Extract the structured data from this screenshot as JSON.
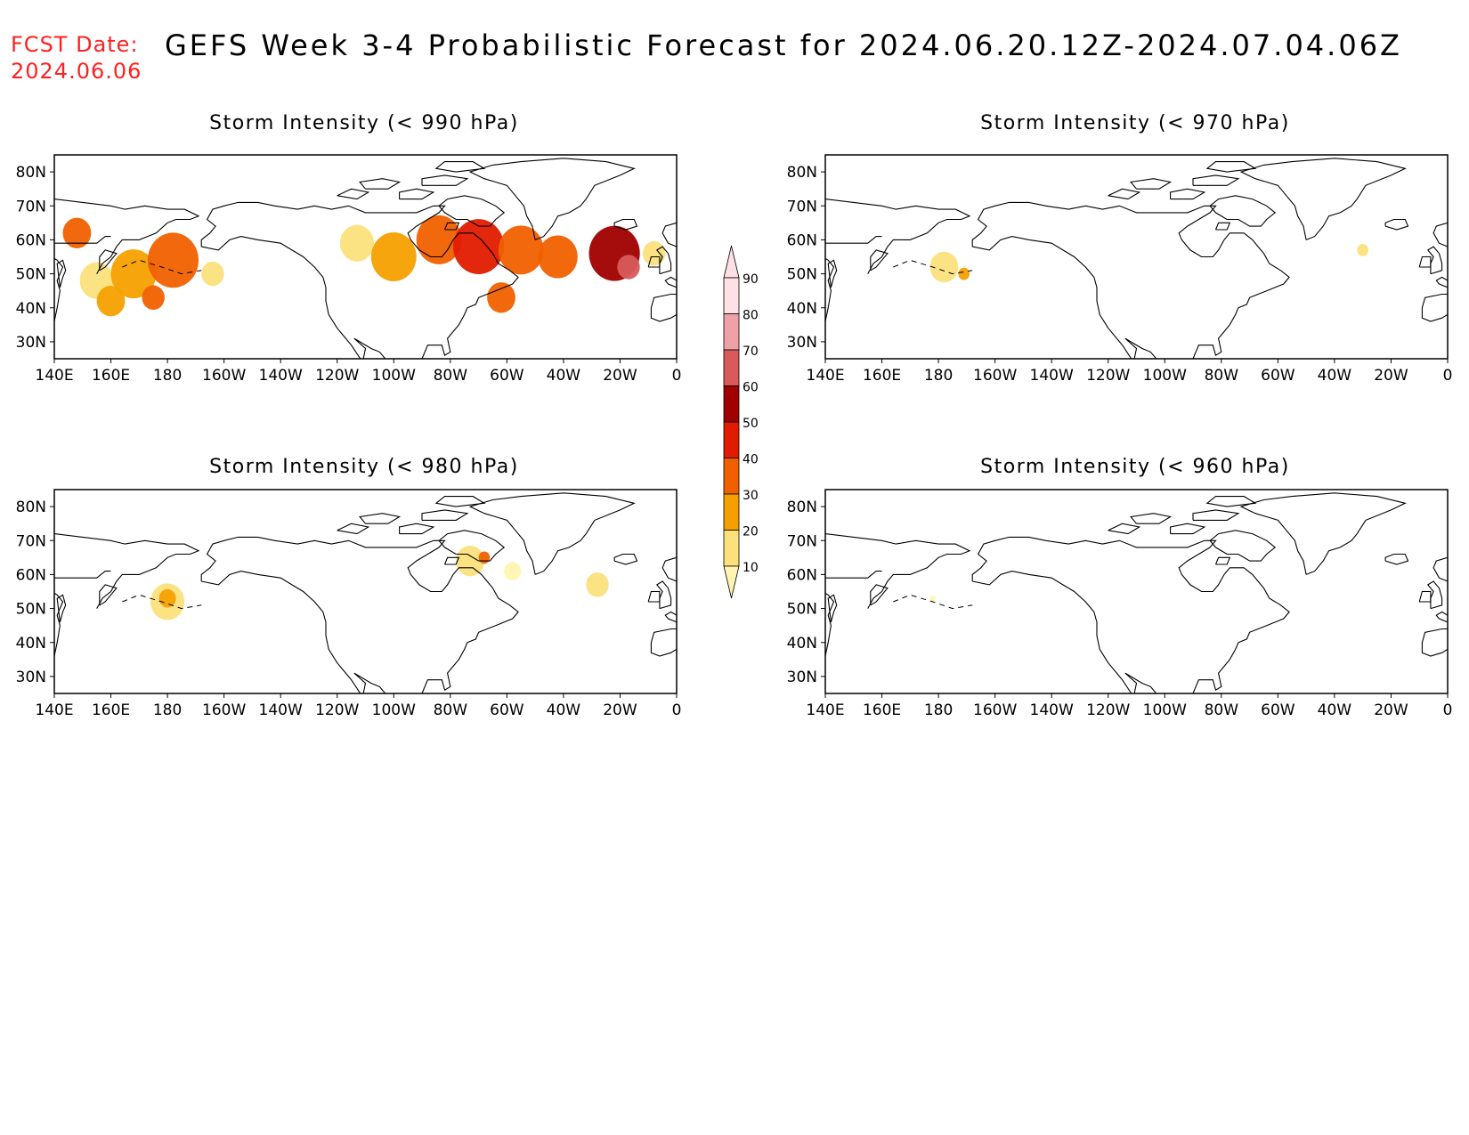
{
  "header": {
    "fcst_label": "FCST Date:",
    "fcst_date": "2024.06.06",
    "title": "GEFS Week 3-4 Probabilistic Forecast for 2024.06.20.12Z-2024.07.04.06Z"
  },
  "colors": {
    "fcst_text": "#ff2020",
    "levels": [
      "#fff4b0",
      "#fbe07c",
      "#f5a000",
      "#f06000",
      "#e01b00",
      "#a00000",
      "#d85a5a",
      "#f0a0a8",
      "#ffe0e4"
    ]
  },
  "colorbar": {
    "levels": [
      10,
      20,
      30,
      40,
      50,
      60,
      70,
      80,
      90
    ]
  },
  "axes": {
    "x_ticks": [
      "140E",
      "160E",
      "180",
      "160W",
      "140W",
      "120W",
      "100W",
      "80W",
      "60W",
      "40W",
      "20W",
      "0"
    ],
    "y_ticks": [
      "80N",
      "70N",
      "60N",
      "50N",
      "40N",
      "30N"
    ]
  },
  "panels": [
    {
      "id": "p990",
      "title": "Storm Intensity (< 990 hPa)",
      "blobs": [
        {
          "lon": 148,
          "lat": 62,
          "r": 5,
          "level": 3
        },
        {
          "lon": 155,
          "lat": 48,
          "r": 6,
          "level": 1
        },
        {
          "lon": 168,
          "lat": 50,
          "r": 8,
          "level": 2
        },
        {
          "lon": 182,
          "lat": 54,
          "r": 9,
          "level": 3
        },
        {
          "lon": 160,
          "lat": 42,
          "r": 5,
          "level": 2
        },
        {
          "lon": 175,
          "lat": 43,
          "r": 4,
          "level": 3
        },
        {
          "lon": 196,
          "lat": 50,
          "r": 4,
          "level": 1
        },
        {
          "lon": 247,
          "lat": 59,
          "r": 6,
          "level": 1
        },
        {
          "lon": 260,
          "lat": 55,
          "r": 8,
          "level": 2
        },
        {
          "lon": 276,
          "lat": 60,
          "r": 8,
          "level": 3
        },
        {
          "lon": 290,
          "lat": 58,
          "r": 9,
          "level": 4
        },
        {
          "lon": 305,
          "lat": 57,
          "r": 8,
          "level": 3
        },
        {
          "lon": 318,
          "lat": 55,
          "r": 7,
          "level": 3
        },
        {
          "lon": 338,
          "lat": 56,
          "r": 9,
          "level": 5
        },
        {
          "lon": 343,
          "lat": 52,
          "r": 4,
          "level": 6
        },
        {
          "lon": 298,
          "lat": 43,
          "r": 5,
          "level": 3
        },
        {
          "lon": 352,
          "lat": 56,
          "r": 4,
          "level": 1
        }
      ]
    },
    {
      "id": "p970",
      "title": "Storm Intensity (< 970 hPa)",
      "blobs": [
        {
          "lon": 182,
          "lat": 52,
          "r": 5,
          "level": 1
        },
        {
          "lon": 189,
          "lat": 50,
          "r": 2,
          "level": 2
        },
        {
          "lon": 330,
          "lat": 57,
          "r": 2,
          "level": 1
        }
      ]
    },
    {
      "id": "p980",
      "title": "Storm Intensity (< 980 hPa)",
      "blobs": [
        {
          "lon": 180,
          "lat": 52,
          "r": 6,
          "level": 1
        },
        {
          "lon": 180,
          "lat": 53,
          "r": 3,
          "level": 2
        },
        {
          "lon": 287,
          "lat": 64,
          "r": 5,
          "level": 1
        },
        {
          "lon": 292,
          "lat": 65,
          "r": 2,
          "level": 3
        },
        {
          "lon": 302,
          "lat": 61,
          "r": 3,
          "level": 0
        },
        {
          "lon": 332,
          "lat": 57,
          "r": 4,
          "level": 1
        }
      ]
    },
    {
      "id": "p960",
      "title": "Storm Intensity (< 960 hPa)",
      "blobs": [
        {
          "lon": 178,
          "lat": 53,
          "r": 1,
          "level": 0
        }
      ]
    }
  ]
}
